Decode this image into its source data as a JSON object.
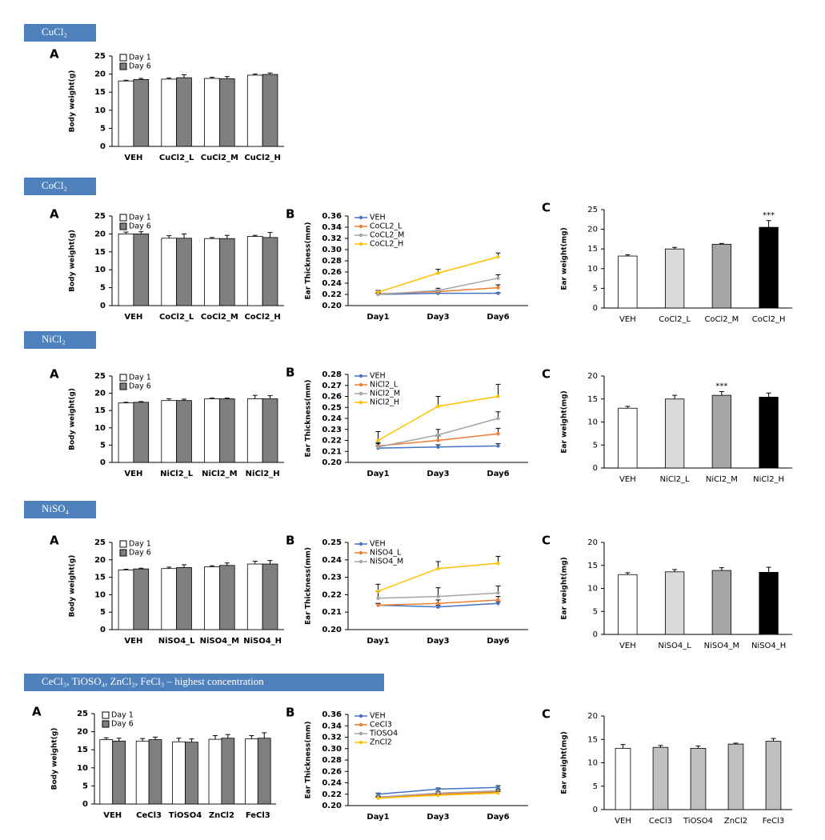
{
  "sections": [
    {
      "label": "CuCl₂"
    },
    {
      "label": "CoCl₂"
    },
    {
      "label": "NiCl₂"
    },
    {
      "label": "NiSO₄"
    },
    {
      "label": "CeCl₃, TiOSO₄, ZnCl₂, FeCl₃ – highest concentration"
    }
  ],
  "chart_data": [
    {
      "type": "bar",
      "panel": "A",
      "y_label": "Body weight(g)",
      "legend": "upper left",
      "categories": [
        "VEH",
        "CuCl2_L",
        "CuCl2_M",
        "CuCl2_H"
      ],
      "series": [
        {
          "name": "Day 1",
          "color": "#ffffff",
          "values": [
            18.1,
            18.6,
            18.8,
            19.7
          ],
          "errors": [
            0.2,
            0.3,
            0.3,
            0.3
          ]
        },
        {
          "name": "Day 6",
          "color": "#7f7f7f",
          "values": [
            18.5,
            19.0,
            18.7,
            19.9
          ],
          "errors": [
            0.3,
            0.8,
            0.6,
            0.4
          ]
        }
      ],
      "ylim": [
        0,
        25
      ],
      "yticks": [
        0,
        5,
        10,
        15,
        20,
        25
      ]
    },
    {
      "type": "bar",
      "panel": "A",
      "y_label": "Body weight(g)",
      "legend": "upper left",
      "categories": [
        "VEH",
        "CoCl2_L",
        "CoCl2_M",
        "CoCl2_H"
      ],
      "series": [
        {
          "name": "Day 1",
          "color": "#ffffff",
          "values": [
            20.0,
            18.8,
            18.7,
            19.3
          ],
          "errors": [
            0.5,
            0.7,
            0.3,
            0.3
          ]
        },
        {
          "name": "Day 6",
          "color": "#7f7f7f",
          "values": [
            20.0,
            18.8,
            18.7,
            19.0
          ],
          "errors": [
            0.6,
            1.2,
            0.9,
            1.4
          ]
        }
      ],
      "ylim": [
        0,
        25
      ],
      "yticks": [
        0,
        5,
        10,
        15,
        20,
        25
      ]
    },
    {
      "type": "line",
      "panel": "B",
      "y_label": "Ear Thickness(mm)",
      "legend": "upper left",
      "categories": [
        "Day1",
        "Day3",
        "Day6"
      ],
      "series": [
        {
          "name": "VEH",
          "color": "#4472c4",
          "values": [
            0.22,
            0.222,
            0.222
          ],
          "errors": [
            0.002,
            0.002,
            0.001
          ]
        },
        {
          "name": "CoCL2_L",
          "color": "#ed7d31",
          "values": [
            0.221,
            0.225,
            0.232
          ],
          "errors": [
            0.002,
            0.003,
            0.005
          ]
        },
        {
          "name": "CoCL2_M",
          "color": "#a5a5a5",
          "values": [
            0.22,
            0.227,
            0.249
          ],
          "errors": [
            0.002,
            0.004,
            0.006
          ]
        },
        {
          "name": "CoCL2_H",
          "color": "#ffc000",
          "values": [
            0.224,
            0.258,
            0.287
          ],
          "errors": [
            0.003,
            0.007,
            0.007
          ]
        }
      ],
      "ylim": [
        0.2,
        0.36
      ],
      "yticks": [
        {
          "value": 0.2,
          "label": "0.20"
        },
        0.22,
        0.24,
        0.26,
        0.28,
        {
          "value": 0.3,
          "label": "0.30"
        },
        0.32,
        0.34,
        0.36
      ]
    },
    {
      "type": "bar",
      "panel": "C",
      "y_label": "Ear weight(mg)",
      "categories": [
        "VEH",
        "CoCl2_L",
        "CoCl2_M",
        "CoCl2_H"
      ],
      "values": [
        13.2,
        15.0,
        16.2,
        20.5
      ],
      "errors": [
        0.3,
        0.4,
        0.2,
        1.7
      ],
      "colors": [
        "#ffffff",
        "#d9d9d9",
        "#a6a6a6",
        "#000000"
      ],
      "annotations": [
        {
          "text": "***",
          "x": "CoCl2_H"
        }
      ],
      "ylim": [
        0,
        25
      ],
      "yticks": [
        0,
        5,
        10,
        15,
        20,
        25
      ]
    },
    {
      "type": "bar",
      "panel": "A",
      "y_label": "Body weight(g)",
      "legend": "upper left",
      "categories": [
        "VEH",
        "NiCl2_L",
        "NiCl2_M",
        "NiCl2_H"
      ],
      "series": [
        {
          "name": "Day 1",
          "color": "#ffffff",
          "values": [
            17.2,
            17.9,
            18.4,
            18.4
          ],
          "errors": [
            0.2,
            0.5,
            0.2,
            1.0
          ]
        },
        {
          "name": "Day 6",
          "color": "#7f7f7f",
          "values": [
            17.4,
            17.9,
            18.4,
            18.4
          ],
          "errors": [
            0.2,
            0.4,
            0.2,
            0.9
          ]
        }
      ],
      "ylim": [
        0,
        25
      ],
      "yticks": [
        0,
        5,
        10,
        15,
        20,
        25
      ]
    },
    {
      "type": "line",
      "panel": "B",
      "y_label": "Ear Thickness(mm)",
      "legend": "upper left",
      "categories": [
        "Day1",
        "Day3",
        "Day6"
      ],
      "series": [
        {
          "name": "VEH",
          "color": "#4472c4",
          "values": [
            0.213,
            0.214,
            0.215
          ],
          "errors": [
            0.002,
            0.002,
            0.002
          ]
        },
        {
          "name": "NiCl2_L",
          "color": "#ed7d31",
          "values": [
            0.215,
            0.22,
            0.226
          ],
          "errors": [
            0.003,
            0.004,
            0.005
          ]
        },
        {
          "name": "NiCl2_M",
          "color": "#a5a5a5",
          "values": [
            0.214,
            0.225,
            0.24
          ],
          "errors": [
            0.003,
            0.005,
            0.006
          ]
        },
        {
          "name": "NiCl2_H",
          "color": "#ffc000",
          "values": [
            0.22,
            0.251,
            0.26
          ],
          "errors": [
            0.008,
            0.009,
            0.011
          ]
        }
      ],
      "ylim": [
        0.2,
        0.28
      ],
      "yticks": [
        {
          "value": 0.2,
          "label": "0.20"
        },
        0.21,
        0.22,
        0.23,
        0.24,
        0.25,
        0.26,
        0.27,
        0.28
      ]
    },
    {
      "type": "bar",
      "panel": "C",
      "y_label": "Ear weight(mg)",
      "categories": [
        "VEH",
        "NiCl2_L",
        "NiCl2_M",
        "NiCl2_H"
      ],
      "values": [
        13.0,
        15.0,
        15.8,
        15.4
      ],
      "errors": [
        0.4,
        0.8,
        0.8,
        0.9
      ],
      "colors": [
        "#ffffff",
        "#d9d9d9",
        "#a6a6a6",
        "#000000"
      ],
      "annotations": [
        {
          "text": "***",
          "x": "NiCl2_M"
        }
      ],
      "ylim": [
        0,
        20
      ],
      "yticks": [
        0,
        5,
        10,
        15,
        20
      ]
    },
    {
      "type": "bar",
      "panel": "A",
      "y_label": "Body weight(g)",
      "legend": "upper left",
      "categories": [
        "VEH",
        "NiSO4_L",
        "NiSO4_M",
        "NiSO4_H"
      ],
      "series": [
        {
          "name": "Day 1",
          "color": "#ffffff",
          "values": [
            17.1,
            17.5,
            18.0,
            18.8
          ],
          "errors": [
            0.2,
            0.4,
            0.3,
            0.8
          ]
        },
        {
          "name": "Day 6",
          "color": "#7f7f7f",
          "values": [
            17.4,
            17.8,
            18.4,
            18.8
          ],
          "errors": [
            0.2,
            0.8,
            0.7,
            1.0
          ]
        }
      ],
      "ylim": [
        0,
        25
      ],
      "yticks": [
        0,
        5,
        10,
        15,
        20,
        25
      ]
    },
    {
      "type": "line",
      "panel": "B",
      "y_label": "Ear Thickness(mm)",
      "legend": "upper left",
      "categories": [
        "Day1",
        "Day3",
        "Day6"
      ],
      "series": [
        {
          "name": "VEH",
          "color": "#4472c4",
          "values": [
            0.214,
            0.213,
            0.215
          ],
          "errors": [
            0.001,
            0.001,
            0.001
          ]
        },
        {
          "name": "NiSO4_L",
          "color": "#ed7d31",
          "values": [
            0.214,
            0.215,
            0.217
          ],
          "errors": [
            0.001,
            0.002,
            0.002
          ]
        },
        {
          "name": "NiSO4_M",
          "color": "#a5a5a5",
          "values": [
            0.218,
            0.219,
            0.221
          ],
          "errors": [
            0.004,
            0.005,
            0.004
          ]
        },
        {
          "name": null,
          "color": "#ffc000",
          "values": [
            0.222,
            0.235,
            0.238
          ],
          "errors": [
            0.004,
            0.004,
            0.004
          ]
        }
      ],
      "ylim": [
        0.2,
        0.25
      ],
      "yticks": [
        {
          "value": 0.2,
          "label": "0.20"
        },
        0.21,
        0.22,
        0.23,
        0.24,
        0.25
      ]
    },
    {
      "type": "bar",
      "panel": "C",
      "y_label": "Ear weight(mg)",
      "categories": [
        "VEH",
        "NiSO4_L",
        "NiSO4_M",
        "NiSO4_H"
      ],
      "values": [
        13.0,
        13.6,
        13.9,
        13.5
      ],
      "errors": [
        0.4,
        0.5,
        0.6,
        1.1
      ],
      "colors": [
        "#ffffff",
        "#d9d9d9",
        "#a6a6a6",
        "#000000"
      ],
      "ylim": [
        0,
        20
      ],
      "yticks": [
        0,
        5,
        10,
        15,
        20
      ]
    },
    {
      "type": "bar",
      "panel": "A",
      "y_label": "Body weight(g)",
      "legend": "upper left",
      "categories": [
        "VEH",
        "CeCl3",
        "TiOSO4",
        "ZnCl2",
        "FeCl3"
      ],
      "series": [
        {
          "name": "Day 1",
          "color": "#ffffff",
          "values": [
            17.8,
            17.4,
            17.2,
            17.9,
            18.0
          ],
          "errors": [
            0.5,
            0.7,
            1.0,
            1.0,
            0.9
          ]
        },
        {
          "name": "Day 6",
          "color": "#7f7f7f",
          "values": [
            17.4,
            17.8,
            17.1,
            18.2,
            18.2
          ],
          "errors": [
            0.8,
            0.7,
            0.9,
            1.0,
            1.5
          ]
        }
      ],
      "ylim": [
        0,
        25
      ],
      "yticks": [
        0,
        5,
        10,
        15,
        20,
        25
      ]
    },
    {
      "type": "line",
      "panel": "B",
      "y_label": "Ear Thickness(mm)",
      "legend": "upper left",
      "categories": [
        "Day1",
        "Day3",
        "Day6"
      ],
      "series": [
        {
          "name": "VEH",
          "color": "#4472c4",
          "values": [
            0.22,
            0.229,
            0.232
          ],
          "errors": [
            0.002,
            0.002,
            0.003
          ]
        },
        {
          "name": "CeCl3",
          "color": "#ed7d31",
          "values": [
            0.214,
            0.22,
            0.224
          ],
          "errors": [
            0.002,
            0.003,
            0.003
          ]
        },
        {
          "name": "TiOSO4",
          "color": "#a5a5a5",
          "values": [
            0.215,
            0.222,
            0.226
          ],
          "errors": [
            0.002,
            0.003,
            0.003
          ]
        },
        {
          "name": "ZnCl2",
          "color": "#ffc000",
          "values": [
            0.213,
            0.218,
            0.222
          ],
          "errors": [
            0.002,
            0.002,
            0.003
          ]
        }
      ],
      "ylim": [
        0.2,
        0.36
      ],
      "yticks": [
        {
          "value": 0.2,
          "label": "0.20"
        },
        0.22,
        0.24,
        0.26,
        0.28,
        {
          "value": 0.3,
          "label": "0.30"
        },
        0.32,
        0.34,
        0.36
      ]
    },
    {
      "type": "bar",
      "panel": "C",
      "y_label": "Ear weight(mg)",
      "categories": [
        "VEH",
        "CeCl3",
        "TiOSO4",
        "ZnCl2",
        "FeCl3"
      ],
      "values": [
        13.1,
        13.3,
        13.1,
        14.0,
        14.6
      ],
      "errors": [
        0.8,
        0.4,
        0.5,
        0.2,
        0.6
      ],
      "colors": [
        "#ffffff",
        "#bfbfbf",
        "#bfbfbf",
        "#bfbfbf",
        "#bfbfbf"
      ],
      "ylim": [
        0,
        20
      ],
      "yticks": [
        0,
        5,
        10,
        15,
        20
      ]
    }
  ]
}
